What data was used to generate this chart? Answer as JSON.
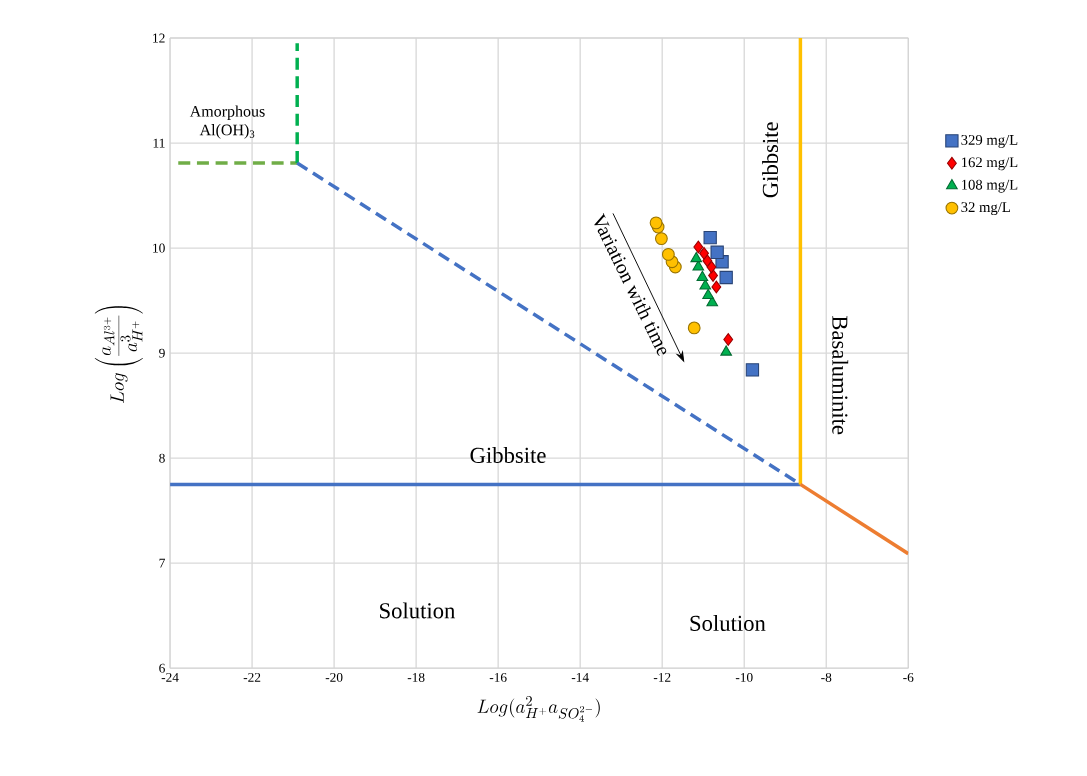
{
  "chart_data": {
    "type": "scatter",
    "xlabel": "Log(a_{H^{+}}^{2}a_{SO_{4}^{2-}})",
    "ylabel": "Log\\left(\\frac{a_{Al^{3+}}}{a_{H^{+}}^{3}}\\right)",
    "xlim": [
      -24,
      -6
    ],
    "ylim": [
      6,
      12
    ],
    "xticks": [
      -24,
      -22,
      -20,
      -18,
      -16,
      -14,
      -12,
      -10,
      -8,
      -6
    ],
    "yticks": [
      6,
      7,
      8,
      9,
      10,
      11,
      12
    ],
    "grid": true,
    "legend": "right",
    "annotations": [
      "Amorphous Al(OH)$_{3}$",
      "Gibbsite",
      "Gibbsite",
      "Basaluminite",
      "Solution",
      "Solution",
      "Variation with time"
    ],
    "series": [
      {
        "name": "329 mg/L",
        "marker": "square",
        "color": "#4472c4",
        "x": [
          -10.83,
          -10.66,
          -10.54,
          -10.44,
          -9.8
        ],
        "values": [
          10.1,
          9.96,
          9.87,
          9.72,
          8.84
        ]
      },
      {
        "name": "162 mg/L",
        "marker": "diamond",
        "color": "#ff0000",
        "x": [
          -11.12,
          -10.98,
          -10.9,
          -10.8,
          -10.76,
          -10.68,
          -10.39
        ],
        "values": [
          10.01,
          9.95,
          9.88,
          9.82,
          9.74,
          9.63,
          9.13
        ]
      },
      {
        "name": "108 mg/L",
        "marker": "triangle",
        "color": "#00b050",
        "x": [
          -11.17,
          -11.12,
          -11.02,
          -10.95,
          -10.88,
          -10.78,
          -10.44
        ],
        "values": [
          9.9,
          9.82,
          9.72,
          9.64,
          9.55,
          9.48,
          9.01
        ]
      },
      {
        "name": "32 mg/L",
        "marker": "circle",
        "color": "#ffc000",
        "x": [
          -12.15,
          -12.1,
          -12.02,
          -11.85,
          -11.76,
          -11.68,
          -11.22
        ],
        "values": [
          10.24,
          10.2,
          10.09,
          9.94,
          9.87,
          9.82,
          9.24
        ]
      },
      {
        "type": "line",
        "line_style": "dashed",
        "color": "#70ad47",
        "x": [
          -23.8,
          -20.9
        ],
        "values": [
          10.81,
          10.81
        ]
      },
      {
        "type": "line",
        "line_style": "dashed",
        "color": "#00b050",
        "x": [
          -20.9,
          -20.9
        ],
        "values": [
          10.81,
          11.95
        ]
      },
      {
        "type": "line",
        "line_style": "dashed",
        "color": "#4472c4",
        "x": [
          -20.9,
          -8.63
        ],
        "values": [
          10.81,
          7.75
        ]
      },
      {
        "type": "line",
        "line_style": "solid",
        "color": "#4472c4",
        "x": [
          -24,
          -8.63
        ],
        "values": [
          7.75,
          7.75
        ]
      },
      {
        "type": "line",
        "line_style": "solid",
        "color": "#ffc000",
        "x": [
          -8.63,
          -8.63
        ],
        "values": [
          7.75,
          12
        ]
      },
      {
        "type": "line",
        "line_style": "solid",
        "color": "#ed7d31",
        "x": [
          -8.63,
          -6
        ],
        "values": [
          7.75,
          7.09
        ]
      }
    ]
  }
}
